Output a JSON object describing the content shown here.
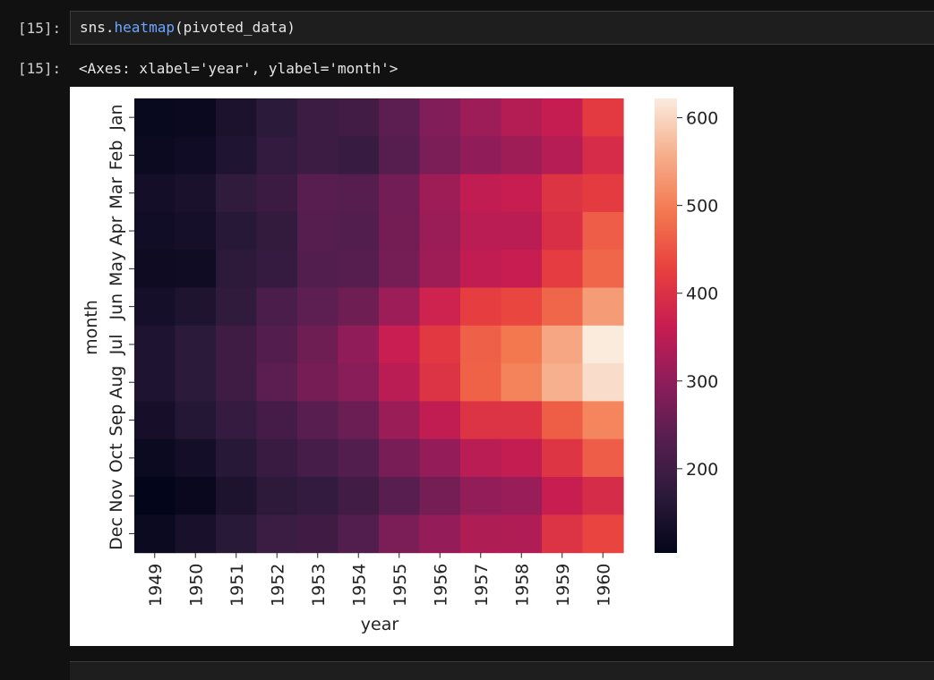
{
  "cells": [
    {
      "input_prompt": "[15]:",
      "code": {
        "prefix": "sns.",
        "fn": "heatmap",
        "args": "(pivoted_data)"
      },
      "output_prompt": "[15]:",
      "output_text": "<Axes: xlabel='year', ylabel='month'>"
    }
  ],
  "chart_data": {
    "type": "heatmap",
    "library": "seaborn",
    "xlabel": "year",
    "ylabel": "month",
    "x_categories": [
      "1949",
      "1950",
      "1951",
      "1952",
      "1953",
      "1954",
      "1955",
      "1956",
      "1957",
      "1958",
      "1959",
      "1960"
    ],
    "y_categories": [
      "Jan",
      "Feb",
      "Mar",
      "Apr",
      "May",
      "Jun",
      "Jul",
      "Aug",
      "Sep",
      "Oct",
      "Nov",
      "Dec"
    ],
    "values": [
      [
        112,
        115,
        145,
        171,
        196,
        204,
        242,
        284,
        315,
        340,
        360,
        417
      ],
      [
        118,
        126,
        150,
        180,
        196,
        188,
        233,
        277,
        301,
        318,
        342,
        391
      ],
      [
        132,
        141,
        178,
        193,
        236,
        235,
        267,
        317,
        356,
        362,
        406,
        419
      ],
      [
        129,
        135,
        163,
        181,
        235,
        227,
        269,
        313,
        348,
        348,
        396,
        461
      ],
      [
        121,
        125,
        172,
        183,
        229,
        234,
        270,
        318,
        355,
        363,
        420,
        472
      ],
      [
        135,
        149,
        178,
        218,
        243,
        264,
        315,
        374,
        422,
        435,
        472,
        535
      ],
      [
        148,
        170,
        199,
        230,
        264,
        302,
        364,
        413,
        465,
        491,
        548,
        622
      ],
      [
        148,
        170,
        199,
        242,
        272,
        293,
        347,
        405,
        467,
        505,
        559,
        606
      ],
      [
        136,
        158,
        184,
        209,
        237,
        259,
        312,
        355,
        404,
        404,
        463,
        508
      ],
      [
        119,
        133,
        162,
        191,
        211,
        229,
        274,
        306,
        347,
        359,
        407,
        461
      ],
      [
        104,
        114,
        146,
        172,
        180,
        203,
        237,
        271,
        305,
        310,
        362,
        390
      ],
      [
        118,
        140,
        166,
        194,
        201,
        229,
        278,
        306,
        336,
        337,
        405,
        432
      ]
    ],
    "colormap": "rocket",
    "colorbar": {
      "ticks": [
        200,
        300,
        400,
        500,
        600
      ],
      "range": [
        104,
        622
      ]
    }
  }
}
